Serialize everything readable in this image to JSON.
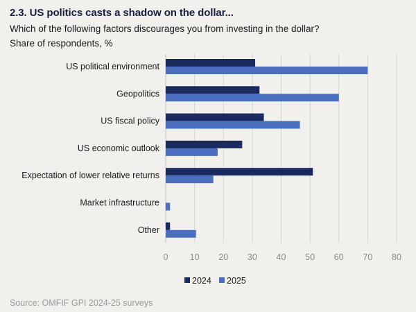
{
  "header": {
    "title": "2.3. US politics casts a shadow on the dollar...",
    "subtitle": "Which of the following factors discourages you from investing in the dollar?",
    "unit": "Share of respondents, %"
  },
  "footer": {
    "source": "Source: OMFIF GPI 2024-25 surveys"
  },
  "colors": {
    "series_2024": "#1b2a5e",
    "series_2025": "#4a6fbf",
    "grid": "#d4d4d4",
    "axis": "#bdbdbd"
  },
  "chart_data": {
    "type": "bar",
    "orientation": "horizontal",
    "title": "2.3. US politics casts a shadow on the dollar...",
    "subtitle": "Which of the following factors discourages you from investing in the dollar?",
    "xlabel": "",
    "ylabel": "",
    "unit": "Share of respondents, %",
    "xlim": [
      0,
      80
    ],
    "xticks": [
      0,
      10,
      20,
      30,
      40,
      50,
      60,
      70,
      80
    ],
    "grid": true,
    "legend_position": "bottom",
    "categories": [
      "US political environment",
      "Geopolitics",
      "US fiscal policy",
      "US economic outlook",
      "Expectation of lower relative returns",
      "Market infrastructure",
      "Other"
    ],
    "series": [
      {
        "name": "2024",
        "values": [
          31,
          32.5,
          34,
          26.5,
          51,
          0,
          1.5
        ]
      },
      {
        "name": "2025",
        "values": [
          70,
          60,
          46.5,
          18,
          16.5,
          1.5,
          10.5
        ]
      }
    ]
  }
}
